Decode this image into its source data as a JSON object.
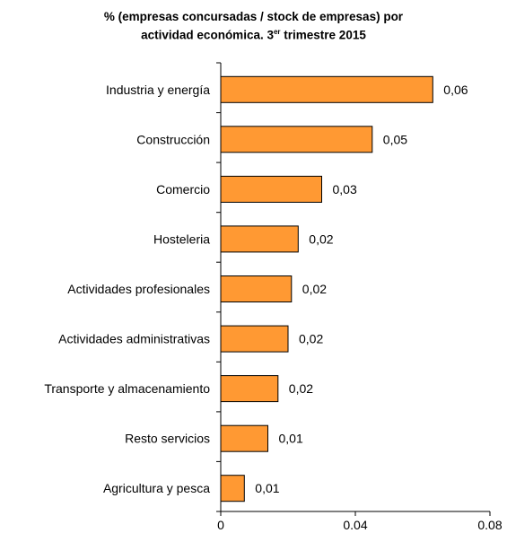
{
  "chart_data": {
    "type": "bar",
    "orientation": "horizontal",
    "title_line1": "% (empresas concursadas / stock de empresas) por",
    "title_line2_prefix": "actividad económica. 3",
    "title_line2_sup": "er",
    "title_line2_suffix": " trimestre 2015",
    "categories": [
      "Industria y energía",
      "Construcción",
      "Comercio",
      "Hosteleria",
      "Actividades profesionales",
      "Actividades administrativas",
      "Transporte y almacenamiento",
      "Resto servicios",
      "Agricultura y pesca"
    ],
    "values": [
      0.063,
      0.045,
      0.03,
      0.023,
      0.021,
      0.02,
      0.017,
      0.014,
      0.007
    ],
    "value_labels": [
      "0,06",
      "0,05",
      "0,03",
      "0,02",
      "0,02",
      "0,02",
      "0,02",
      "0,01",
      "0,01"
    ],
    "xlim": [
      0,
      0.08
    ],
    "xticks": [
      0,
      0.04,
      0.08
    ],
    "xtick_labels": [
      "0",
      "0.04",
      "0.08"
    ],
    "grid": false,
    "bar_color": "#FF9933",
    "bar_border_color": "#000000"
  }
}
